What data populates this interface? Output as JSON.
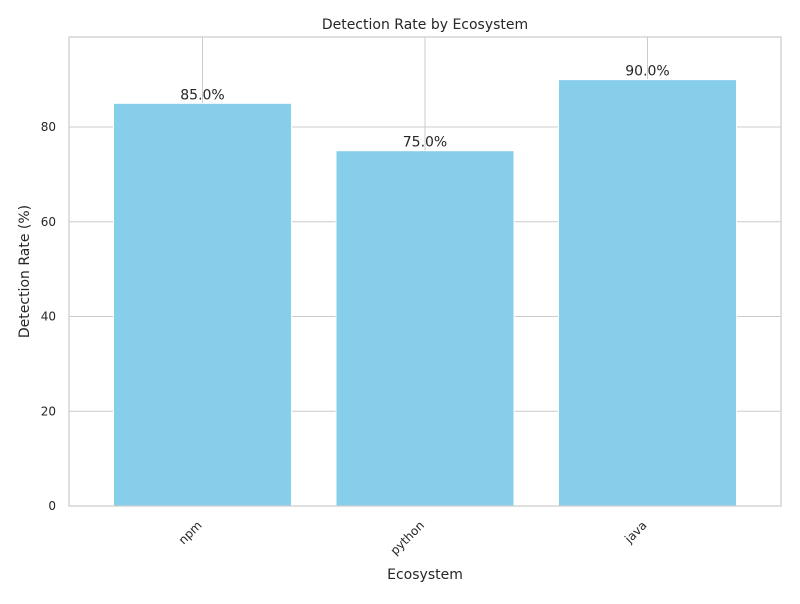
{
  "chart_data": {
    "type": "bar",
    "title": "Detection Rate by Ecosystem",
    "xlabel": "Ecosystem",
    "ylabel": "Detection Rate (%)",
    "categories": [
      "npm",
      "python",
      "java"
    ],
    "values": [
      85.0,
      75.0,
      90.0
    ],
    "value_labels": [
      "85.0%",
      "75.0%",
      "90.0%"
    ],
    "ylim": [
      0,
      99
    ],
    "yticks": [
      0,
      20,
      40,
      60,
      80
    ],
    "grid": true,
    "legend": "none",
    "bar_color": "#87CEEB",
    "x_tick_rotation": 45
  }
}
